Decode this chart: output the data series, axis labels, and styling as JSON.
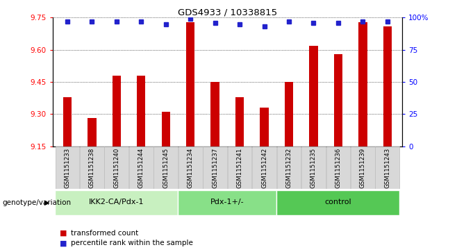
{
  "title": "GDS4933 / 10338815",
  "samples": [
    "GSM1151233",
    "GSM1151238",
    "GSM1151240",
    "GSM1151244",
    "GSM1151245",
    "GSM1151234",
    "GSM1151237",
    "GSM1151241",
    "GSM1151242",
    "GSM1151232",
    "GSM1151235",
    "GSM1151236",
    "GSM1151239",
    "GSM1151243"
  ],
  "red_values": [
    9.38,
    9.28,
    9.48,
    9.48,
    9.31,
    9.73,
    9.45,
    9.38,
    9.33,
    9.45,
    9.62,
    9.58,
    9.73,
    9.71
  ],
  "blue_values": [
    97,
    97,
    97,
    97,
    95,
    99,
    96,
    95,
    93,
    97,
    96,
    96,
    97,
    97
  ],
  "groups": [
    {
      "label": "IKK2-CA/Pdx-1",
      "start": 0,
      "end": 5,
      "color": "#c8f0c0"
    },
    {
      "label": "Pdx-1+/-",
      "start": 5,
      "end": 9,
      "color": "#88e088"
    },
    {
      "label": "control",
      "start": 9,
      "end": 14,
      "color": "#55c855"
    }
  ],
  "ylim_left": [
    9.15,
    9.75
  ],
  "ylim_right": [
    0,
    100
  ],
  "yticks_left": [
    9.15,
    9.3,
    9.45,
    9.6,
    9.75
  ],
  "yticks_right": [
    0,
    25,
    50,
    75,
    100
  ],
  "bar_color": "#cc0000",
  "dot_color": "#2222cc",
  "background_color": "#ffffff",
  "plot_bg_color": "#ffffff",
  "xlabel_genotype": "genotype/variation",
  "legend_red": "transformed count",
  "legend_blue": "percentile rank within the sample",
  "bar_width": 0.35
}
